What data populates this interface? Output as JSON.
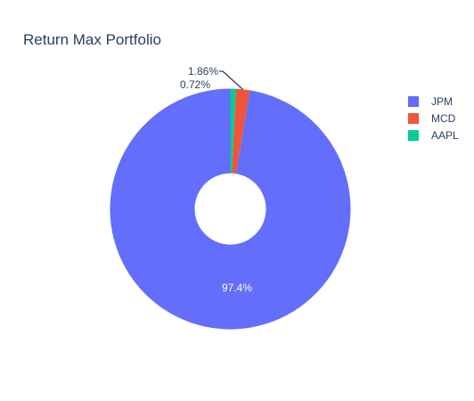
{
  "chart_data": {
    "type": "pie",
    "hole": true,
    "title": "Return Max Portfolio",
    "categories": [
      "JPM",
      "MCD",
      "AAPL"
    ],
    "values": [
      97.4,
      1.86,
      0.72
    ],
    "labels": [
      "97.4%",
      "1.86%",
      "0.72%"
    ],
    "colors": [
      "#636efa",
      "#ef553b",
      "#00cc96"
    ],
    "legend": {
      "placement": "top-right",
      "items": [
        "JPM",
        "MCD",
        "AAPL"
      ]
    }
  }
}
